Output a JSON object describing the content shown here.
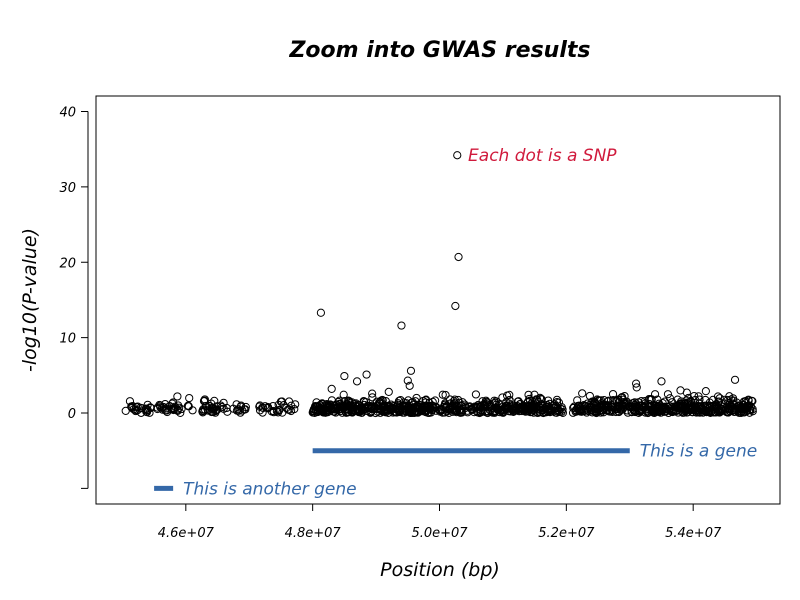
{
  "chart_data": {
    "type": "scatter",
    "title": "Zoom into GWAS results",
    "xlabel": "Position (bp)",
    "ylabel": "-log10(P-value)",
    "xlim": [
      45000000,
      55000000
    ],
    "ylim": [
      -10,
      40
    ],
    "x_ticks": [
      {
        "value": 46000000,
        "label": "4.6e+07"
      },
      {
        "value": 48000000,
        "label": "4.8e+07"
      },
      {
        "value": 50000000,
        "label": "5.0e+07"
      },
      {
        "value": 52000000,
        "label": "5.2e+07"
      },
      {
        "value": 54000000,
        "label": "5.4e+07"
      }
    ],
    "y_ticks": [
      {
        "value": 0,
        "label": "0"
      },
      {
        "value": 10,
        "label": "10"
      },
      {
        "value": 20,
        "label": "20"
      },
      {
        "value": 30,
        "label": "30"
      },
      {
        "value": 40,
        "label": "40"
      }
    ],
    "highlight_points": [
      {
        "x": 50280000,
        "y": 34.2
      },
      {
        "x": 50300000,
        "y": 20.7
      },
      {
        "x": 50250000,
        "y": 14.2
      },
      {
        "x": 48130000,
        "y": 13.3
      },
      {
        "x": 49400000,
        "y": 11.6
      },
      {
        "x": 49550000,
        "y": 5.6
      },
      {
        "x": 49500000,
        "y": 4.3
      },
      {
        "x": 49530000,
        "y": 3.6
      },
      {
        "x": 48850000,
        "y": 5.1
      },
      {
        "x": 48500000,
        "y": 4.9
      },
      {
        "x": 48700000,
        "y": 4.2
      },
      {
        "x": 48300000,
        "y": 3.2
      },
      {
        "x": 49200000,
        "y": 2.8
      },
      {
        "x": 53100000,
        "y": 3.9
      },
      {
        "x": 53110000,
        "y": 3.4
      },
      {
        "x": 53500000,
        "y": 4.2
      },
      {
        "x": 53800000,
        "y": 3.0
      },
      {
        "x": 53900000,
        "y": 2.7
      },
      {
        "x": 54200000,
        "y": 2.9
      },
      {
        "x": 54660000,
        "y": 4.4
      },
      {
        "x": 52250000,
        "y": 2.6
      },
      {
        "x": 51100000,
        "y": 2.4
      },
      {
        "x": 51600000,
        "y": 1.9
      },
      {
        "x": 47500000,
        "y": 1.5
      },
      {
        "x": 46300000,
        "y": 1.8
      },
      {
        "x": 45800000,
        "y": 1.4
      }
    ],
    "background_regions": [
      {
        "x": [
          45050000,
          45450000
        ],
        "n": 25
      },
      {
        "x": [
          45550000,
          45950000
        ],
        "n": 30
      },
      {
        "x": [
          46000000,
          46150000
        ],
        "n": 5
      },
      {
        "x": [
          46200000,
          46500000
        ],
        "n": 30
      },
      {
        "x": [
          46550000,
          46950000
        ],
        "n": 18
      },
      {
        "x": [
          47150000,
          47300000
        ],
        "n": 10
      },
      {
        "x": [
          47350000,
          47750000
        ],
        "n": 20
      },
      {
        "x": [
          48000000,
          49950000
        ],
        "n": 340
      },
      {
        "x": [
          50000000,
          51950000
        ],
        "n": 300
      },
      {
        "x": [
          52100000,
          54950000
        ],
        "n": 480
      }
    ],
    "genes": [
      {
        "label": "This is a gene",
        "x_start": 48000000,
        "x_end": 53000000,
        "y": -5,
        "color": "#3468a8"
      },
      {
        "label": "This is another gene",
        "x_start": 45500000,
        "x_end": 45800000,
        "y": -10,
        "color": "#3468a8"
      }
    ],
    "annotations": [
      {
        "text": "Each dot is a SNP",
        "x": 50450000,
        "y": 34.2,
        "color": "#d01a3c"
      }
    ],
    "grid": false,
    "legend": "none"
  }
}
